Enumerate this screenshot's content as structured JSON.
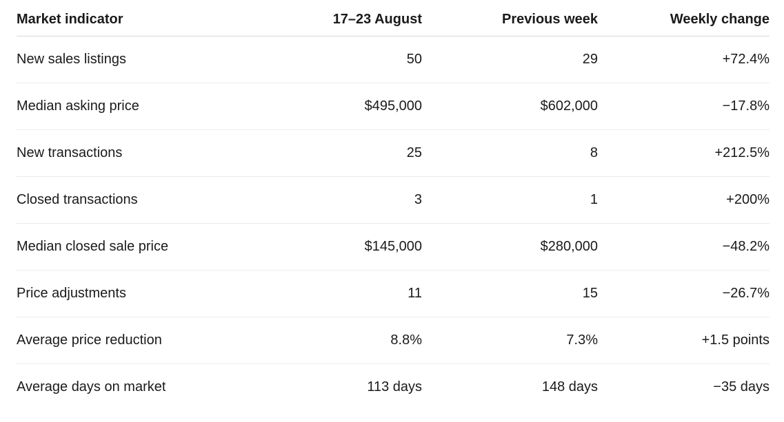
{
  "table": {
    "headers": [
      "Market indicator",
      "17–23 August",
      "Previous week",
      "Weekly change"
    ],
    "rows": [
      [
        "New sales listings",
        "50",
        "29",
        "+72.4%"
      ],
      [
        "Median asking price",
        "$495,000",
        "$602,000",
        "−17.8%"
      ],
      [
        "New transactions",
        "25",
        "8",
        "+212.5%"
      ],
      [
        "Closed transactions",
        "3",
        "1",
        "+200%"
      ],
      [
        "Median closed sale price",
        "$145,000",
        "$280,000",
        "−48.2%"
      ],
      [
        "Price adjustments",
        "11",
        "15",
        "−26.7%"
      ],
      [
        "Average price reduction",
        "8.8%",
        "7.3%",
        "+1.5 points"
      ],
      [
        "Average days on market",
        "113 days",
        "148 days",
        "−35 days"
      ]
    ]
  }
}
